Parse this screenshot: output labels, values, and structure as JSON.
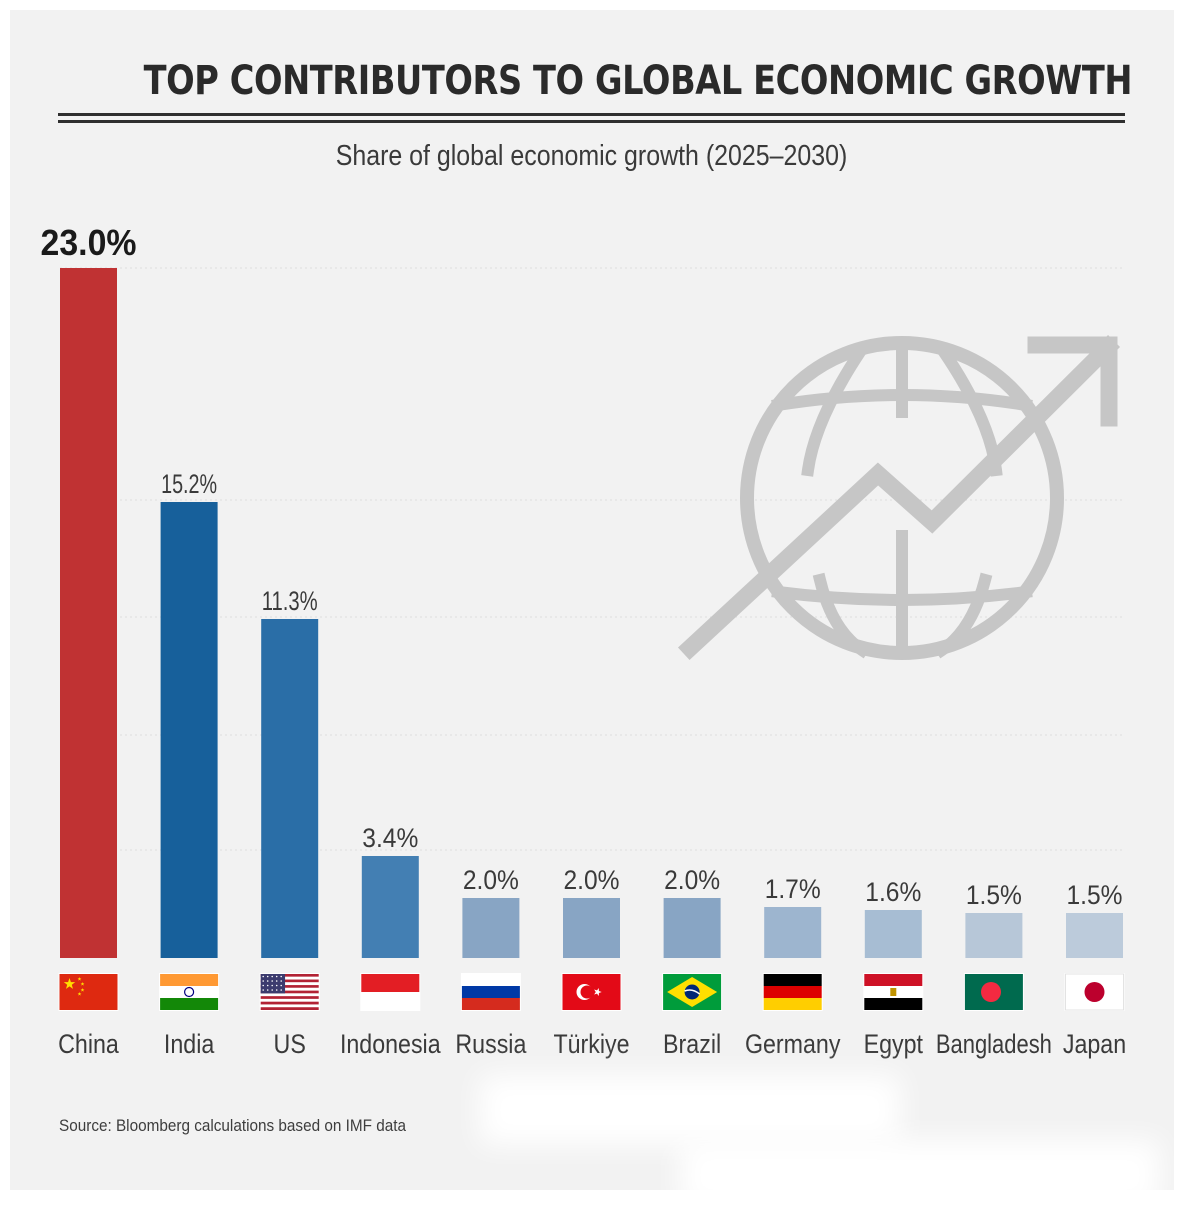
{
  "title": "TOP CONTRIBUTORS TO GLOBAL ECONOMIC GROWTH",
  "subtitle": "Share of global economic growth (2025–2030)",
  "source": "Source: Bloomberg calculations based on IMF data",
  "icon": "globe-growth-arrow-icon",
  "colors": {
    "background": "#f2f2f2",
    "gridline": "#dddddd",
    "icon": "#c6c6c6"
  },
  "chart_data": {
    "type": "bar",
    "categories": [
      "China",
      "India",
      "US",
      "Indonesia",
      "Russia",
      "Türkiye",
      "Brazil",
      "Germany",
      "Egypt",
      "Bangladesh",
      "Japan"
    ],
    "values": [
      23.0,
      15.2,
      11.3,
      3.4,
      2.0,
      2.0,
      2.0,
      1.7,
      1.6,
      1.5,
      1.5
    ],
    "labels": [
      "23.0%",
      "15.2%",
      "11.3%",
      "3.4%",
      "2.0%",
      "2.0%",
      "2.0%",
      "1.7%",
      "1.6%",
      "1.5%",
      "1.5%"
    ],
    "colors": [
      "#c03233",
      "#17609b",
      "#2a6ea7",
      "#437fb3",
      "#88a5c4",
      "#88a5c4",
      "#88a5c4",
      "#9db5cf",
      "#a7bdd3",
      "#b7c7d8",
      "#bccbdb"
    ],
    "flags": [
      "china-flag-icon",
      "india-flag-icon",
      "us-flag-icon",
      "indonesia-flag-icon",
      "russia-flag-icon",
      "turkiye-flag-icon",
      "brazil-flag-icon",
      "germany-flag-icon",
      "egypt-flag-icon",
      "bangladesh-flag-icon",
      "japan-flag-icon"
    ],
    "ylim": [
      0,
      23.0
    ],
    "unit": "%",
    "grid": true,
    "highlight": "China"
  }
}
